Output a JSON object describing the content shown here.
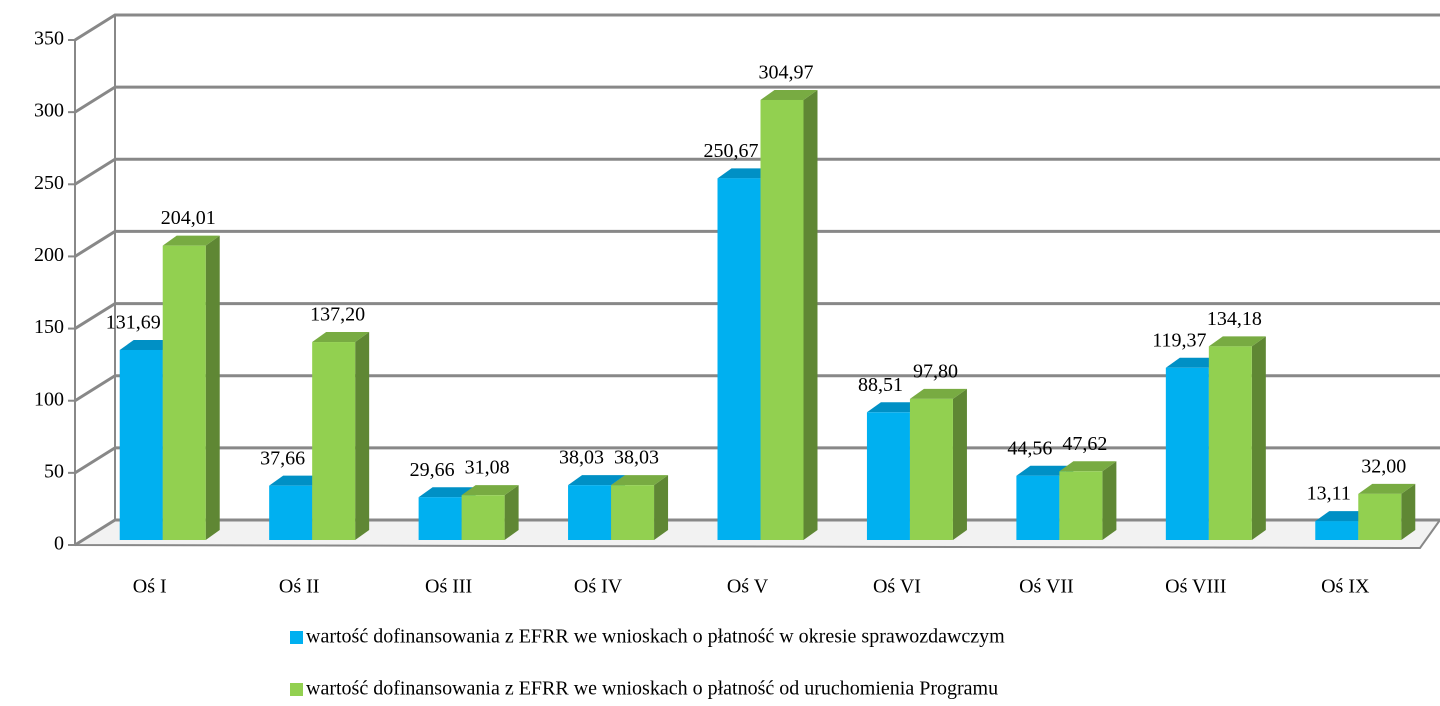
{
  "chart_data": {
    "type": "bar3d",
    "categories": [
      "Oś I",
      "Oś II",
      "Oś III",
      "Oś IV",
      "Oś V",
      "Oś VI",
      "Oś VII",
      "Oś VIII",
      "Oś IX"
    ],
    "series": [
      {
        "name": "wartość dofinansowania z EFRR we wnioskach o płatność w okresie sprawozdawczym",
        "color": "#00b0f0",
        "values": [
          131.69,
          37.66,
          29.66,
          38.03,
          250.67,
          88.51,
          44.56,
          119.37,
          13.11
        ],
        "value_labels": [
          "131,69",
          "37,66",
          "29,66",
          "38,03",
          "250,67",
          "88,51",
          "44,56",
          "119,37",
          "13,11"
        ]
      },
      {
        "name": "wartość dofinansowania z EFRR we wnioskach o płatność od uruchomienia Programu",
        "color": "#92d050",
        "values": [
          204.01,
          137.2,
          31.08,
          38.03,
          304.97,
          97.8,
          47.62,
          134.18,
          32.0
        ],
        "value_labels": [
          "204,01",
          "137,20",
          "31,08",
          "38,03",
          "304,97",
          "97,80",
          "47,62",
          "134,18",
          "32,00"
        ]
      }
    ],
    "ylim": [
      0,
      350
    ],
    "yticks": [
      0,
      50,
      100,
      150,
      200,
      250,
      300,
      350
    ],
    "grid": true,
    "legend": "bottom"
  }
}
